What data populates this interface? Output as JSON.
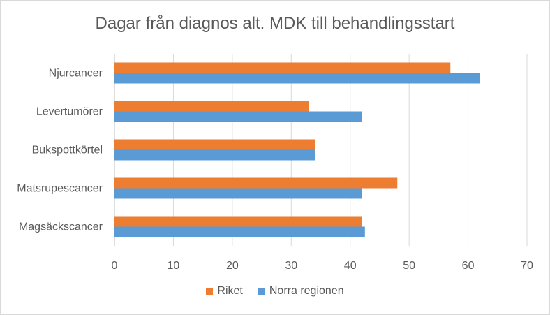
{
  "chart_data": {
    "type": "bar",
    "orientation": "horizontal",
    "title": "Dagar från diagnos alt. MDK till behandlingsstart",
    "categories": [
      "Njurcancer",
      "Levertumörer",
      "Bukspottkörtel",
      "Matsrupescancer",
      "Magsäckscancer"
    ],
    "series": [
      {
        "name": "Riket",
        "color": "#ED7D31",
        "values": [
          57,
          33,
          34,
          48,
          42
        ]
      },
      {
        "name": "Norra regionen",
        "color": "#5B9BD5",
        "values": [
          62,
          42,
          34,
          42,
          42.5
        ]
      }
    ],
    "xlim": [
      0,
      70
    ],
    "xticks": [
      "0",
      "10",
      "20",
      "30",
      "40",
      "50",
      "60",
      "70"
    ],
    "grid": true,
    "legend_position": "bottom"
  }
}
